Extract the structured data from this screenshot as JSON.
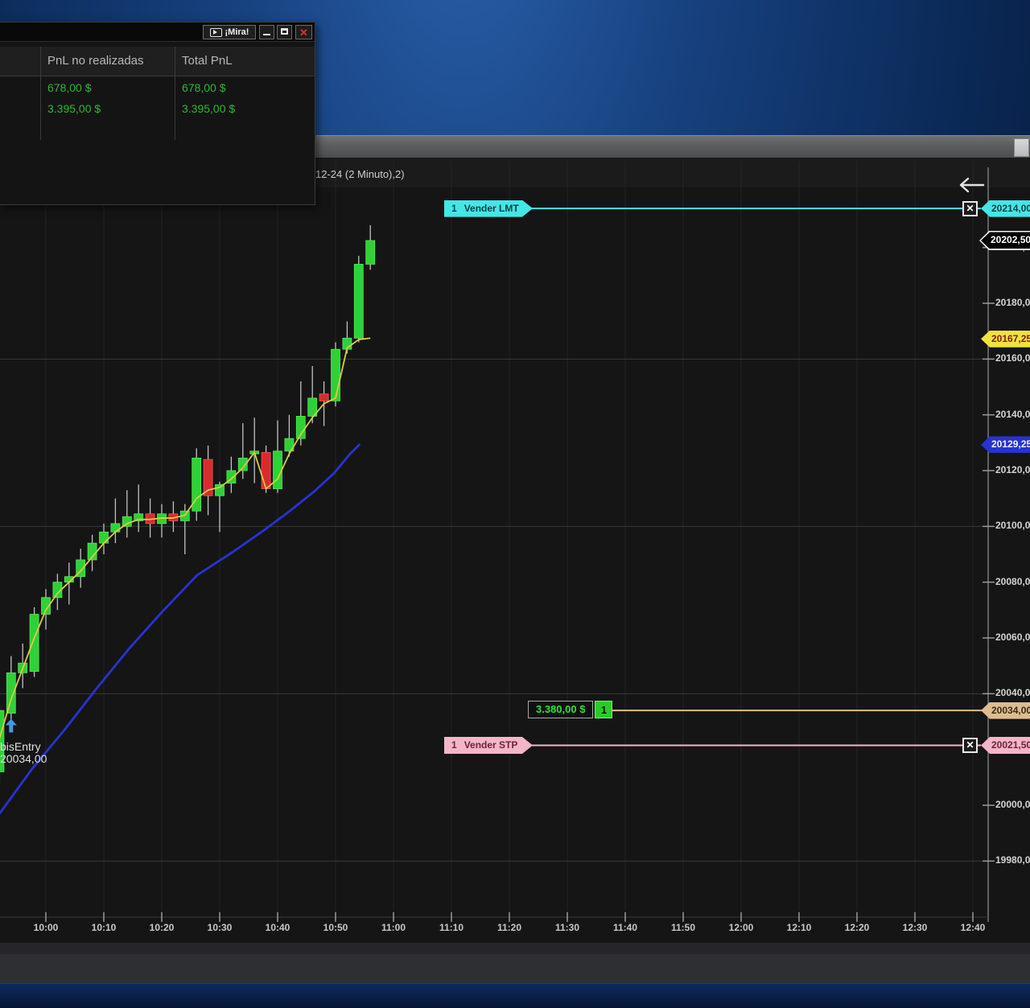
{
  "pnl_window": {
    "mira_label": "¡Mira!",
    "columns": [
      "PnL no realizadas",
      "Total PnL"
    ],
    "rows": [
      [
        "678,00 $",
        "678,00 $"
      ],
      [
        "3.395,00 $",
        "3.395,00 $"
      ]
    ]
  },
  "chart": {
    "title_text": "12-24 (2 Minuto),2)",
    "entry_marker": {
      "line1": "bisEntry",
      "line2": "20034,00",
      "time": "09:54",
      "price": 20031.0
    },
    "fast_ma_tag": {
      "price_label": "20167,25",
      "price": 20167.25
    },
    "slow_ma_tag": {
      "price_label": "20129,25",
      "price": 20129.25
    },
    "last_price_tag": {
      "price_label": "20202,50",
      "price": 20202.5
    }
  },
  "orders": {
    "sell_limit": {
      "qty": "1",
      "label": "Vender LMT",
      "price": 20214.0,
      "price_label": "20214,00"
    },
    "sell_stop": {
      "qty": "1",
      "label": "Vender STP",
      "price": 20021.5,
      "price_label": "20021,50"
    },
    "position": {
      "pnl_label": "3.380,00 $",
      "qty": "1",
      "price": 20034.0,
      "price_label": "20034,00"
    }
  },
  "chart_data": {
    "type": "candlestick",
    "interval": "2 Minuto",
    "x_ticks": [
      "10:00",
      "10:10",
      "10:20",
      "10:30",
      "10:40",
      "10:50",
      "11:00",
      "11:10",
      "11:20",
      "11:30",
      "11:40",
      "11:50",
      "12:00",
      "12:10",
      "12:20",
      "12:30",
      "12:40"
    ],
    "y_ticks": [
      {
        "value": 20200,
        "label": "20200,00"
      },
      {
        "value": 20180,
        "label": "20180,00"
      },
      {
        "value": 20160,
        "label": "20160,00"
      },
      {
        "value": 20140,
        "label": "20140,00"
      },
      {
        "value": 20120,
        "label": "20120,00"
      },
      {
        "value": 20100,
        "label": "20100,00"
      },
      {
        "value": 20080,
        "label": "20080,00"
      },
      {
        "value": 20060,
        "label": "20060,00"
      },
      {
        "value": 20040,
        "label": "20040,00"
      },
      {
        "value": 20000,
        "label": "20000,00"
      },
      {
        "value": 19980,
        "label": "19980,00"
      }
    ],
    "h_gridlines": [
      20160,
      20100,
      20040,
      19980
    ],
    "ylim": [
      19960,
      20220
    ],
    "candles": [
      {
        "time": "09:52",
        "o": 20012.0,
        "h": 20036.0,
        "l": 20008.0,
        "c": 20034.0
      },
      {
        "time": "09:54",
        "o": 20033.0,
        "h": 20053.5,
        "l": 20030.0,
        "c": 20047.5
      },
      {
        "time": "09:56",
        "o": 20047.5,
        "h": 20058.0,
        "l": 20042.0,
        "c": 20051.0
      },
      {
        "time": "09:58",
        "o": 20048.0,
        "h": 20071.0,
        "l": 20046.0,
        "c": 20068.5
      },
      {
        "time": "10:00",
        "o": 20068.5,
        "h": 20077.5,
        "l": 20063.0,
        "c": 20074.5
      },
      {
        "time": "10:02",
        "o": 20074.5,
        "h": 20083.0,
        "l": 20070.0,
        "c": 20080.0
      },
      {
        "time": "10:04",
        "o": 20080.0,
        "h": 20087.0,
        "l": 20072.0,
        "c": 20082.0
      },
      {
        "time": "10:06",
        "o": 20082.0,
        "h": 20092.0,
        "l": 20078.0,
        "c": 20088.0
      },
      {
        "time": "10:08",
        "o": 20088.0,
        "h": 20097.0,
        "l": 20084.0,
        "c": 20094.0
      },
      {
        "time": "10:10",
        "o": 20094.0,
        "h": 20101.0,
        "l": 20090.0,
        "c": 20098.0
      },
      {
        "time": "10:12",
        "o": 20098.0,
        "h": 20110.0,
        "l": 20094.0,
        "c": 20101.0
      },
      {
        "time": "10:14",
        "o": 20100.0,
        "h": 20113.0,
        "l": 20096.0,
        "c": 20103.5
      },
      {
        "time": "10:16",
        "o": 20102.0,
        "h": 20115.0,
        "l": 20098.0,
        "c": 20104.5
      },
      {
        "time": "10:18",
        "o": 20104.5,
        "h": 20110.0,
        "l": 20096.0,
        "c": 20101.0
      },
      {
        "time": "10:20",
        "o": 20101.0,
        "h": 20108.0,
        "l": 20096.0,
        "c": 20104.5
      },
      {
        "time": "10:22",
        "o": 20104.5,
        "h": 20109.0,
        "l": 20098.0,
        "c": 20102.0
      },
      {
        "time": "10:24",
        "o": 20102.0,
        "h": 20108.0,
        "l": 20090.0,
        "c": 20105.5
      },
      {
        "time": "10:26",
        "o": 20105.5,
        "h": 20128.0,
        "l": 20102.0,
        "c": 20124.5
      },
      {
        "time": "10:28",
        "o": 20124.0,
        "h": 20129.0,
        "l": 20104.0,
        "c": 20111.0
      },
      {
        "time": "10:30",
        "o": 20111.0,
        "h": 20116.0,
        "l": 20098.0,
        "c": 20115.0
      },
      {
        "time": "10:32",
        "o": 20115.5,
        "h": 20125.0,
        "l": 20112.0,
        "c": 20120.0
      },
      {
        "time": "10:34",
        "o": 20120.0,
        "h": 20137.0,
        "l": 20117.0,
        "c": 20124.5
      },
      {
        "time": "10:36",
        "o": 20126.0,
        "h": 20139.0,
        "l": 20115.5,
        "c": 20127.0
      },
      {
        "time": "10:38",
        "o": 20126.5,
        "h": 20129.0,
        "l": 20112.0,
        "c": 20113.5
      },
      {
        "time": "10:40",
        "o": 20113.5,
        "h": 20138.0,
        "l": 20112.0,
        "c": 20127.0
      },
      {
        "time": "10:42",
        "o": 20127.0,
        "h": 20140.0,
        "l": 20125.0,
        "c": 20131.5
      },
      {
        "time": "10:44",
        "o": 20131.5,
        "h": 20152.0,
        "l": 20129.0,
        "c": 20139.5
      },
      {
        "time": "10:46",
        "o": 20139.5,
        "h": 20157.5,
        "l": 20137.0,
        "c": 20146.0
      },
      {
        "time": "10:48",
        "o": 20147.5,
        "h": 20152.0,
        "l": 20136.0,
        "c": 20145.0
      },
      {
        "time": "10:50",
        "o": 20145.0,
        "h": 20166.0,
        "l": 20143.0,
        "c": 20163.5
      },
      {
        "time": "10:52",
        "o": 20163.5,
        "h": 20173.5,
        "l": 20162.0,
        "c": 20167.5
      },
      {
        "time": "10:54",
        "o": 20167.5,
        "h": 20197.0,
        "l": 20166.0,
        "c": 20194.0
      },
      {
        "time": "10:56",
        "o": 20194.0,
        "h": 20208.0,
        "l": 20192.0,
        "c": 20202.5
      }
    ],
    "series": [
      {
        "name": "fast-ma",
        "color": "#d9cd3f",
        "values": [
          20024,
          20038,
          20049,
          20060,
          20070,
          20076,
          20080,
          20084,
          20089,
          20094,
          20098,
          20101,
          20102.5,
          20102.5,
          20103,
          20103,
          20104,
          20110,
          20113,
          20114,
          20117,
          20121,
          20126.5,
          20113.5,
          20117,
          20126,
          20133,
          20139,
          20144,
          20146,
          20164,
          20167,
          20167.5
        ]
      },
      {
        "name": "slow-ma",
        "color": "#2733cf",
        "points": [
          [
            592.0,
            19997
          ],
          [
            597.6,
            20013
          ],
          [
            603.2,
            20027
          ],
          [
            608.8,
            20042
          ],
          [
            614.3,
            20056
          ],
          [
            619.9,
            20069
          ],
          [
            626.1,
            20082.5
          ],
          [
            632.4,
            20091
          ],
          [
            637.9,
            20099
          ],
          [
            642.1,
            20105.5
          ],
          [
            646.3,
            20112.5
          ],
          [
            649.7,
            20119
          ],
          [
            652.5,
            20126
          ],
          [
            654.2,
            20129.5
          ]
        ]
      }
    ]
  },
  "colors": {
    "bull": "#2ed136",
    "bear": "#d92b2e",
    "fast_ma": "#d9cd3f",
    "slow_ma": "#2733cf",
    "sell_limit": "#45e6e6",
    "sell_stop": "#f2b6c8",
    "entry_line": "#dcbd8e",
    "pnl_green": "#2eb82e"
  }
}
